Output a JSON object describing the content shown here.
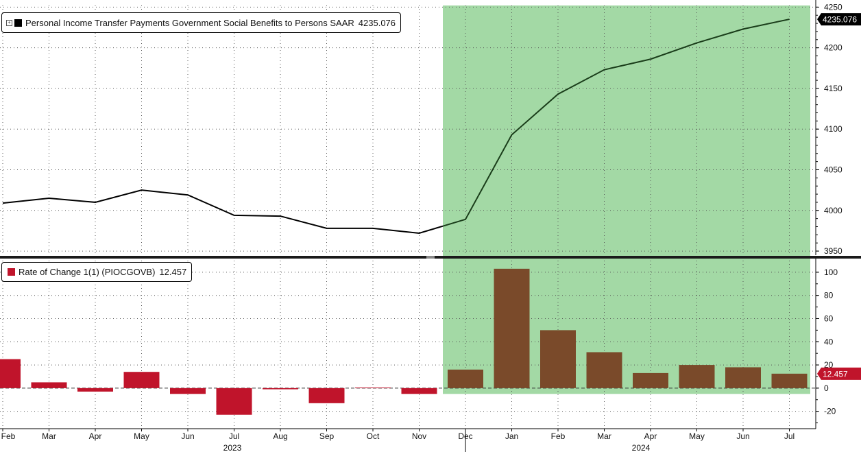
{
  "chart_data": [
    {
      "type": "line",
      "legend_label": "Personal Income Transfer Payments Government Social Benefits to Persons SAAR",
      "last_value_label": "4235.076",
      "colors": {
        "line": "#000000",
        "line_in_highlight": "#1a3d1a",
        "highlight": "#a3d9a5",
        "last_value_bg": "#000000",
        "swatch": "#000000"
      },
      "x": [
        "Feb",
        "Mar",
        "Apr",
        "May",
        "Jun",
        "Jul",
        "Aug",
        "Sep",
        "Oct",
        "Nov",
        "Dec",
        "Jan",
        "Feb",
        "Mar",
        "Apr",
        "May",
        "Jun",
        "Jul"
      ],
      "values": [
        4009,
        4015,
        4010,
        4025,
        4019,
        3994,
        3993,
        3978,
        3978,
        3972,
        3989,
        4093,
        4143,
        4173,
        4186,
        4206,
        4223,
        4235.076
      ],
      "ylim": [
        3945,
        4252
      ],
      "yticks": [
        "3950",
        "4000",
        "4050",
        "4100",
        "4150",
        "4200",
        "4250"
      ],
      "highlight_range": [
        "Dec",
        "Jul"
      ]
    },
    {
      "type": "bar",
      "legend_label": "Rate of Change 1(1) (PIOCGOVB)",
      "last_value_label": "12.457",
      "colors": {
        "negative": "#c0142b",
        "positive": "#c0142b",
        "in_highlight": "#7a4a2a",
        "highlight": "#a3d9a5",
        "last_value_bg": "#c0142b",
        "swatch": "#c0142b"
      },
      "x": [
        "Feb",
        "Mar",
        "Apr",
        "May",
        "Jun",
        "Jul",
        "Aug",
        "Sep",
        "Oct",
        "Nov",
        "Dec",
        "Jan",
        "Feb",
        "Mar",
        "Apr",
        "May",
        "Jun",
        "Jul"
      ],
      "values": [
        25,
        5,
        -3,
        14,
        -5,
        -23,
        -1,
        -13,
        0.5,
        -5,
        16,
        103,
        50,
        31,
        13,
        20,
        18,
        12.457
      ],
      "ylim": [
        -35,
        110
      ],
      "yticks": [
        "-20",
        "0",
        "20",
        "40",
        "60",
        "80",
        "100"
      ],
      "highlight_range": [
        "Dec",
        "Jul"
      ]
    }
  ],
  "x_axis": {
    "tick_labels": [
      "Feb",
      "Mar",
      "Apr",
      "May",
      "Jun",
      "Jul",
      "Aug",
      "Sep",
      "Oct",
      "Nov",
      "Dec",
      "Jan",
      "Feb",
      "Mar",
      "Apr",
      "May",
      "Jun",
      "Jul"
    ],
    "year_labels": [
      "2023",
      "2024"
    ]
  }
}
